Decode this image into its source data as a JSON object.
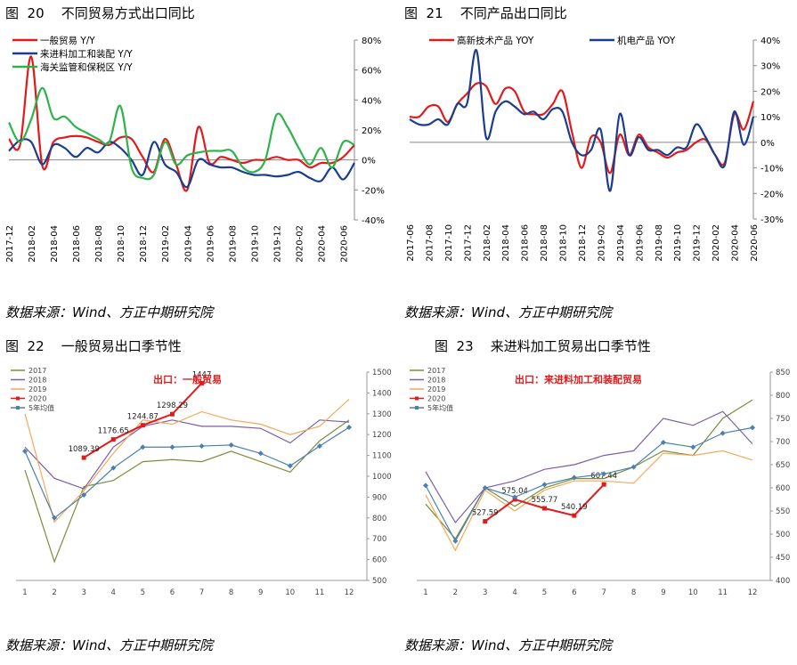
{
  "panels": [
    {
      "title": "图  20    不同贸易方式出口同比",
      "source": "数据来源：Wind、方正中期研究院"
    },
    {
      "title": "图  21    不同产品出口同比",
      "source": "数据来源：Wind、方正中期研究院"
    },
    {
      "title": "图  22    一般贸易出口季节性",
      "source": "数据来源：Wind、方正中期研究院"
    },
    {
      "title": "图  23    来进料加工贸易出口季节性",
      "source": "数据来源：Wind、方正中期研究院"
    }
  ],
  "chart_data": [
    {
      "type": "line",
      "ylim": [
        -40,
        80
      ],
      "y_ticks": [
        "80%",
        "60%",
        "40%",
        "20%",
        "0%",
        "-20%",
        "-40%"
      ],
      "y_tick_values": [
        80,
        60,
        40,
        20,
        0,
        -20,
        -40
      ],
      "x_tick_labels": [
        "2017-12",
        "2018-02",
        "2018-04",
        "2018-06",
        "2018-08",
        "2018-10",
        "2018-12",
        "2019-02",
        "2019-04",
        "2019-06",
        "2019-08",
        "2019-10",
        "2019-12",
        "2020-02",
        "2020-04",
        "2020-06"
      ],
      "n_points": 32,
      "legend_position": "top-left",
      "series": [
        {
          "name": "一般贸易 Y/Y",
          "color": "#e31a1c",
          "values": [
            14,
            10,
            69,
            -4,
            12,
            15,
            16,
            15,
            12,
            10,
            15,
            14,
            2,
            -8,
            14,
            -3,
            -20,
            22,
            -2,
            2,
            0,
            -2,
            0,
            0,
            2,
            0,
            0,
            -5,
            -2,
            -2,
            2,
            10
          ]
        },
        {
          "name": "来进料加工和装配  Y/Y",
          "color": "#1a3d8f",
          "values": [
            6,
            13,
            12,
            -3,
            10,
            8,
            2,
            8,
            5,
            12,
            8,
            0,
            -10,
            12,
            -3,
            -8,
            -18,
            0,
            -3,
            -5,
            -5,
            -8,
            -10,
            -10,
            -11,
            -10,
            -8,
            -12,
            -14,
            -5,
            -13,
            -2
          ]
        },
        {
          "name": "海关监管和保税区  Y/Y",
          "color": "#2db34a",
          "values": [
            25,
            12,
            27,
            48,
            28,
            29,
            22,
            18,
            14,
            12,
            36,
            -5,
            -12,
            -10,
            12,
            -3,
            3,
            5,
            6,
            6,
            6,
            -5,
            -8,
            0,
            30,
            22,
            8,
            -3,
            8,
            -5,
            12,
            10
          ]
        }
      ]
    },
    {
      "type": "line",
      "ylim": [
        -30,
        40
      ],
      "y_ticks": [
        "40%",
        "30%",
        "20%",
        "10%",
        "0%",
        "-10%",
        "-20%",
        "-30%"
      ],
      "y_tick_values": [
        40,
        30,
        20,
        10,
        0,
        -10,
        -20,
        -30
      ],
      "x_tick_labels": [
        "2017-06",
        "2017-08",
        "2017-10",
        "2017-12",
        "2018-02",
        "2018-04",
        "2018-06",
        "2018-08",
        "2018-10",
        "2018-12",
        "2019-02",
        "2019-04",
        "2019-06",
        "2019-08",
        "2019-10",
        "2019-12",
        "2020-02",
        "2020-04",
        "2020-06"
      ],
      "n_points": 37,
      "legend_position": "top",
      "series": [
        {
          "name": "高新技术产品 YOY",
          "color": "#e31a1c",
          "values": [
            10,
            10,
            14,
            14,
            8,
            15,
            19,
            23,
            22,
            15,
            21,
            20,
            12,
            11,
            11,
            15,
            20,
            4,
            -10,
            2,
            0,
            -12,
            3,
            -5,
            3,
            -2,
            -4,
            -6,
            -4,
            -3,
            0,
            1,
            -5,
            -8,
            11,
            5,
            16
          ]
        },
        {
          "name": "机电产品 YOY",
          "color": "#1a3d8f",
          "values": [
            9,
            7,
            7,
            9,
            7,
            15,
            15,
            36,
            2,
            12,
            16,
            14,
            11,
            12,
            9,
            13,
            12,
            0,
            -5,
            -3,
            5,
            -19,
            11,
            -5,
            2,
            -3,
            -3,
            -5,
            -2,
            -2,
            7,
            2,
            -5,
            -9,
            12,
            -1,
            10
          ]
        }
      ]
    },
    {
      "type": "line",
      "ylim": [
        500,
        1500
      ],
      "y_ticks": [
        "1500",
        "1400",
        "1300",
        "1200",
        "1100",
        "1000",
        "900",
        "800",
        "700",
        "600",
        "500"
      ],
      "y_tick_values": [
        1500,
        1400,
        1300,
        1200,
        1100,
        1000,
        900,
        800,
        700,
        600,
        500
      ],
      "categories": [
        "1",
        "2",
        "3",
        "4",
        "5",
        "6",
        "7",
        "8",
        "9",
        "10",
        "11",
        "12"
      ],
      "annotation": "出口：一般贸易",
      "legend_position": "top-left",
      "series": [
        {
          "name": "2017",
          "color": "#7a8f3a",
          "values": [
            1030,
            590,
            950,
            980,
            1070,
            1080,
            1070,
            1120,
            1070,
            1020,
            1170,
            1270
          ]
        },
        {
          "name": "2018",
          "color": "#7b5ea7",
          "values": [
            1140,
            990,
            940,
            1140,
            1240,
            1270,
            1240,
            1240,
            1230,
            1160,
            1270,
            1260
          ]
        },
        {
          "name": "2019",
          "color": "#f4a95a",
          "values": [
            1300,
            780,
            930,
            1110,
            1270,
            1250,
            1310,
            1270,
            1250,
            1200,
            1240,
            1370
          ]
        },
        {
          "name": "2020",
          "color": "#e31a1c",
          "marker": true,
          "values": [
            null,
            null,
            1089.39,
            1176.65,
            1244.87,
            1298.29,
            1447,
            null,
            null,
            null,
            null,
            null
          ],
          "labels": [
            "",
            "",
            "1089.39",
            "1176.65",
            "1244.87",
            "1298.29",
            "1447",
            "",
            "",
            "",
            "",
            ""
          ]
        },
        {
          "name": "5年均值",
          "color": "#4a7fb0",
          "marker": true,
          "values": [
            1120,
            800,
            910,
            1040,
            1140,
            1140,
            1145,
            1150,
            1110,
            1050,
            1145,
            1235
          ]
        }
      ]
    },
    {
      "type": "line",
      "ylim": [
        400,
        850
      ],
      "y_ticks": [
        "850",
        "800",
        "750",
        "700",
        "650",
        "600",
        "550",
        "500",
        "450",
        "400"
      ],
      "y_tick_values": [
        850,
        800,
        750,
        700,
        650,
        600,
        550,
        500,
        450,
        400
      ],
      "categories": [
        "1",
        "2",
        "3",
        "4",
        "5",
        "6",
        "7",
        "8",
        "9",
        "10",
        "11",
        "12"
      ],
      "annotation": "出口：来进料加工和装配贸易",
      "legend_position": "top-left",
      "series": [
        {
          "name": "2017",
          "color": "#7a8f3a",
          "values": [
            565,
            490,
            600,
            560,
            600,
            620,
            620,
            645,
            680,
            670,
            750,
            790
          ]
        },
        {
          "name": "2018",
          "color": "#7b5ea7",
          "values": [
            635,
            525,
            600,
            615,
            640,
            650,
            670,
            680,
            750,
            735,
            765,
            695
          ]
        },
        {
          "name": "2019",
          "color": "#f4a95a",
          "values": [
            585,
            465,
            595,
            550,
            595,
            615,
            615,
            610,
            675,
            670,
            680,
            660
          ]
        },
        {
          "name": "2020",
          "color": "#e31a1c",
          "marker": true,
          "values": [
            null,
            null,
            527.59,
            575.04,
            555.77,
            540.19,
            607.44,
            null,
            null,
            null,
            null,
            null
          ],
          "labels": [
            "",
            "",
            "527.59",
            "575.04",
            "555.77",
            "540.19",
            "607.44",
            "",
            "",
            "",
            "",
            ""
          ]
        },
        {
          "name": "5年均值",
          "color": "#4a7fb0",
          "marker": true,
          "values": [
            605,
            485,
            600,
            580,
            607,
            622,
            630,
            645,
            698,
            688,
            718,
            730
          ]
        }
      ]
    }
  ]
}
